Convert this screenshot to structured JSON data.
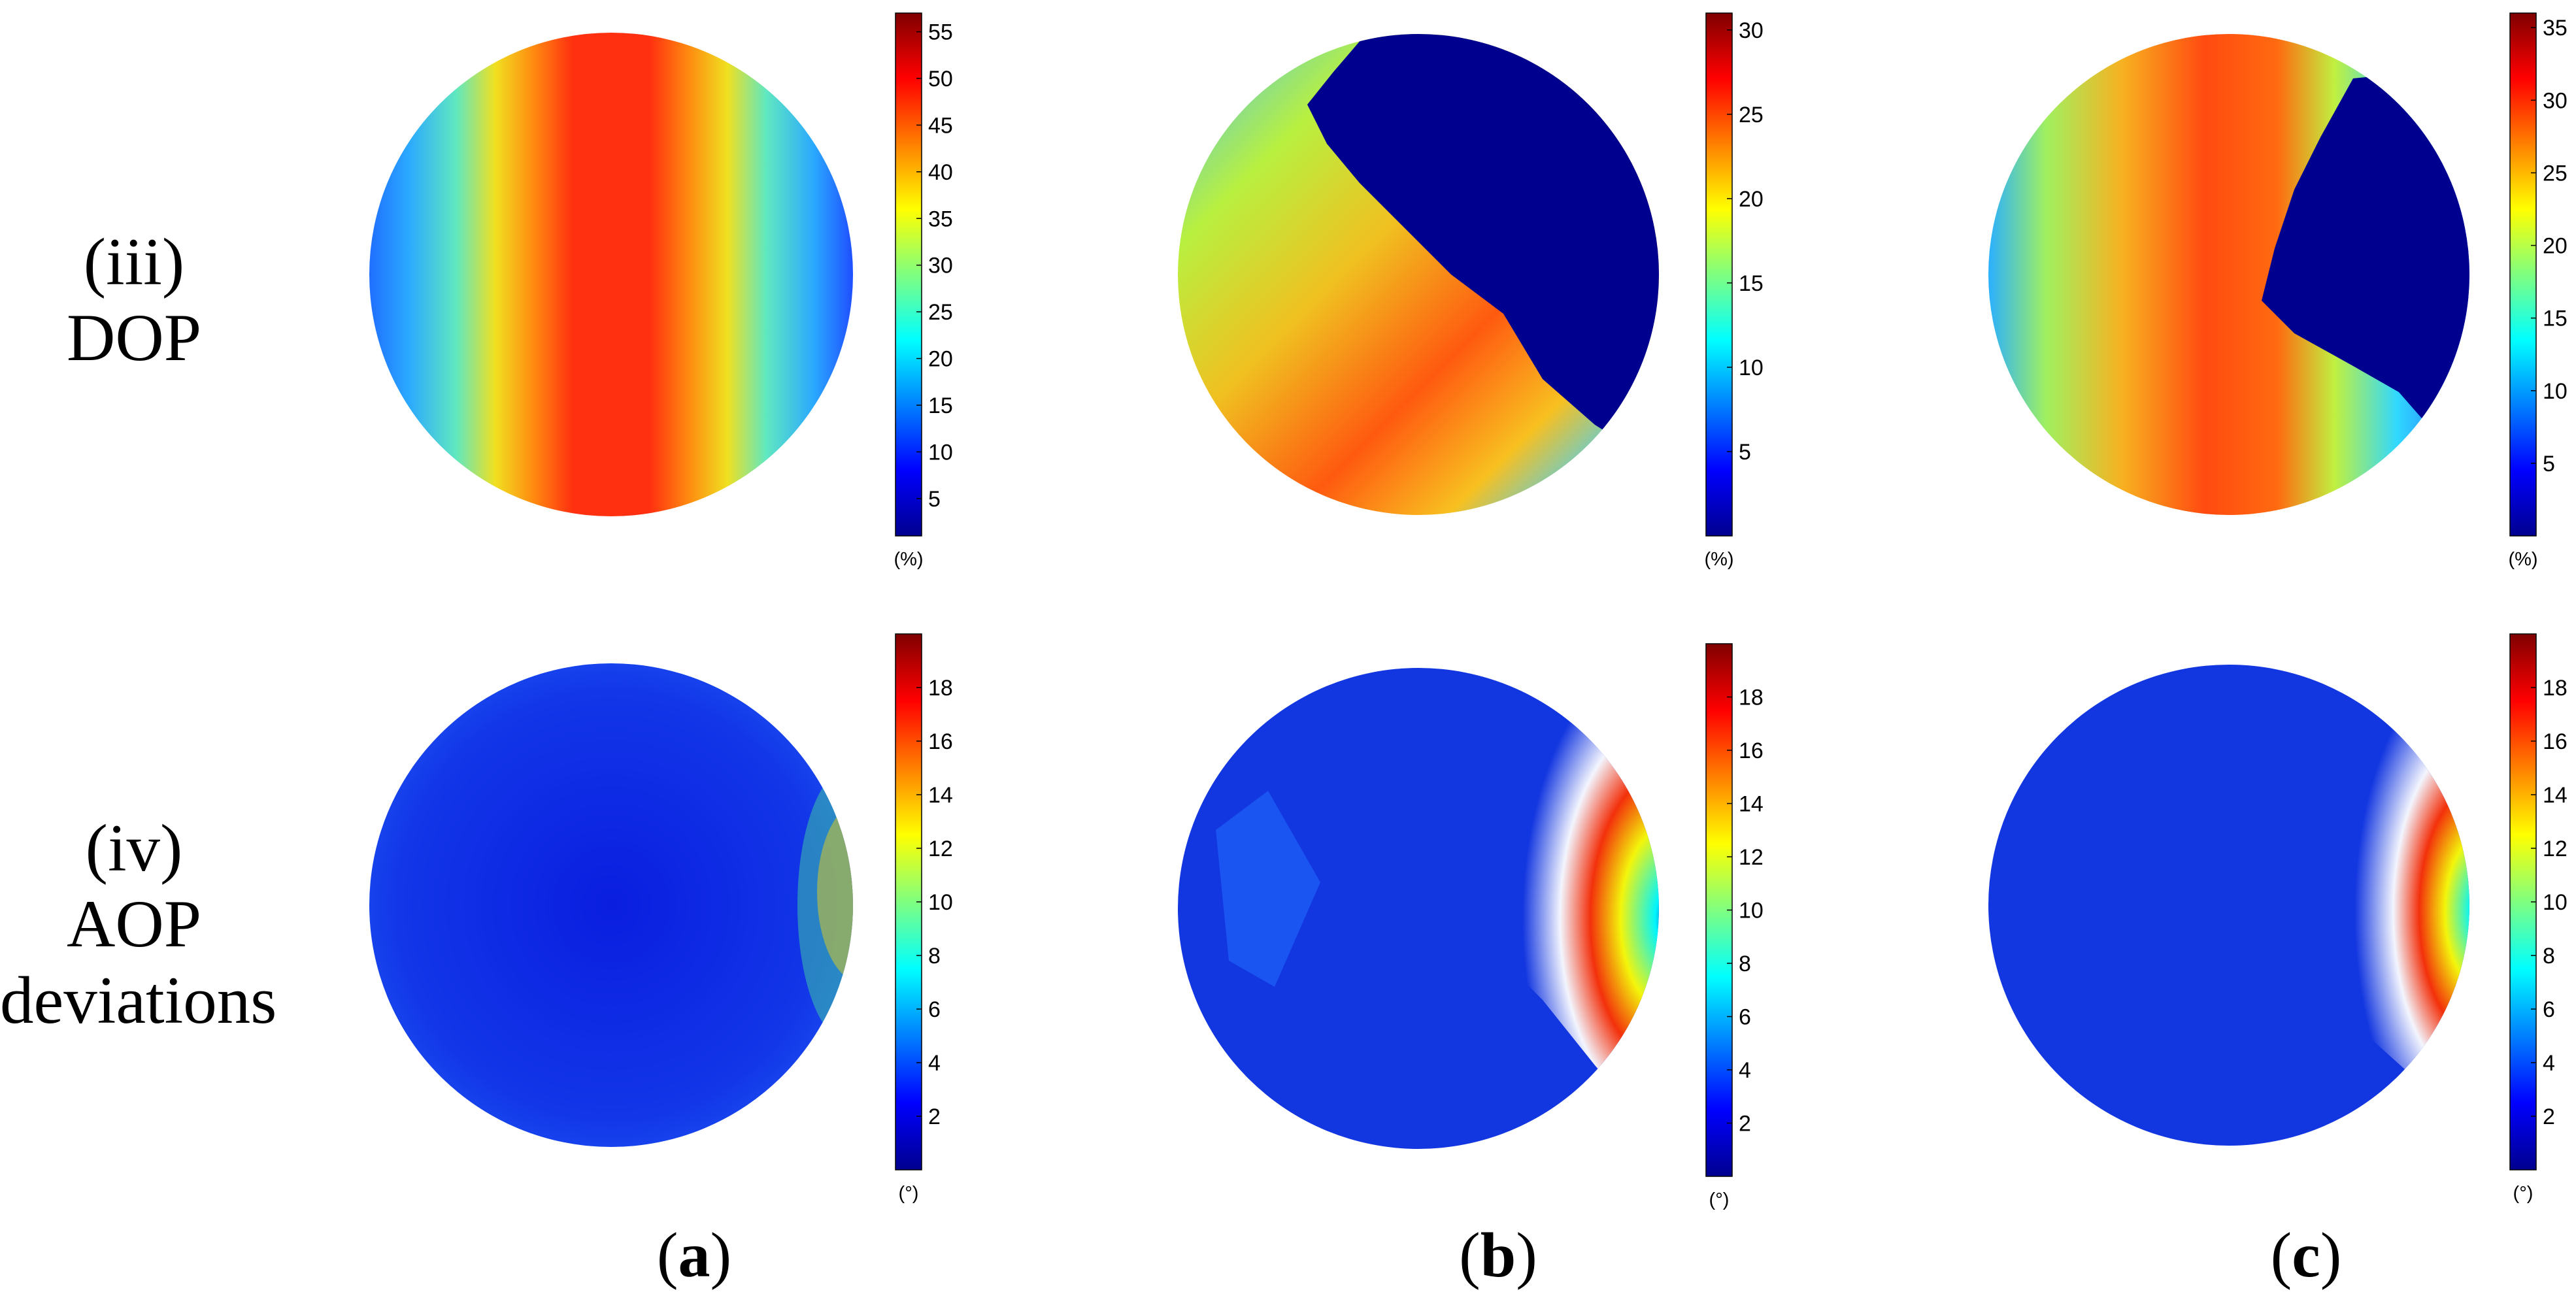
{
  "row_labels": [
    {
      "line1": "(iii)",
      "line2": "DOP",
      "line3": ""
    },
    {
      "line1": "(iv)",
      "line2": "AOP",
      "line3": "deviations"
    }
  ],
  "column_labels": [
    {
      "open": "(",
      "letter": "a",
      "close": ")"
    },
    {
      "open": "(",
      "letter": "b",
      "close": ")"
    },
    {
      "open": "(",
      "letter": "c",
      "close": ")"
    }
  ],
  "colorbars": [
    {
      "panel": "iii-a",
      "unit": "(%)",
      "min": 1,
      "max": 57,
      "ticks": [
        "5",
        "10",
        "15",
        "20",
        "25",
        "30",
        "35",
        "40",
        "45",
        "50",
        "55"
      ]
    },
    {
      "panel": "iii-b",
      "unit": "(%)",
      "min": 0,
      "max": 31,
      "ticks": [
        "5",
        "10",
        "15",
        "20",
        "25",
        "30"
      ]
    },
    {
      "panel": "iii-c",
      "unit": "(%)",
      "min": 0,
      "max": 36,
      "ticks": [
        "5",
        "10",
        "15",
        "20",
        "25",
        "30",
        "35"
      ]
    },
    {
      "panel": "iv-a",
      "unit": "(°)",
      "min": 0,
      "max": 20,
      "ticks": [
        "2",
        "4",
        "6",
        "8",
        "10",
        "12",
        "14",
        "16",
        "18"
      ]
    },
    {
      "panel": "iv-b",
      "unit": "(°)",
      "min": 0,
      "max": 20,
      "ticks": [
        "2",
        "4",
        "6",
        "8",
        "10",
        "12",
        "14",
        "16",
        "18"
      ]
    },
    {
      "panel": "iv-c",
      "unit": "(°)",
      "min": 0,
      "max": 20,
      "ticks": [
        "2",
        "4",
        "6",
        "8",
        "10",
        "12",
        "14",
        "16",
        "18"
      ]
    }
  ],
  "colormap": "jet",
  "colors": {
    "dark_blue": "#00008f",
    "blue": "#0000ff",
    "cyan": "#00ffff",
    "yellow": "#ffff00",
    "red": "#ff0000",
    "dark_red": "#800000"
  }
}
